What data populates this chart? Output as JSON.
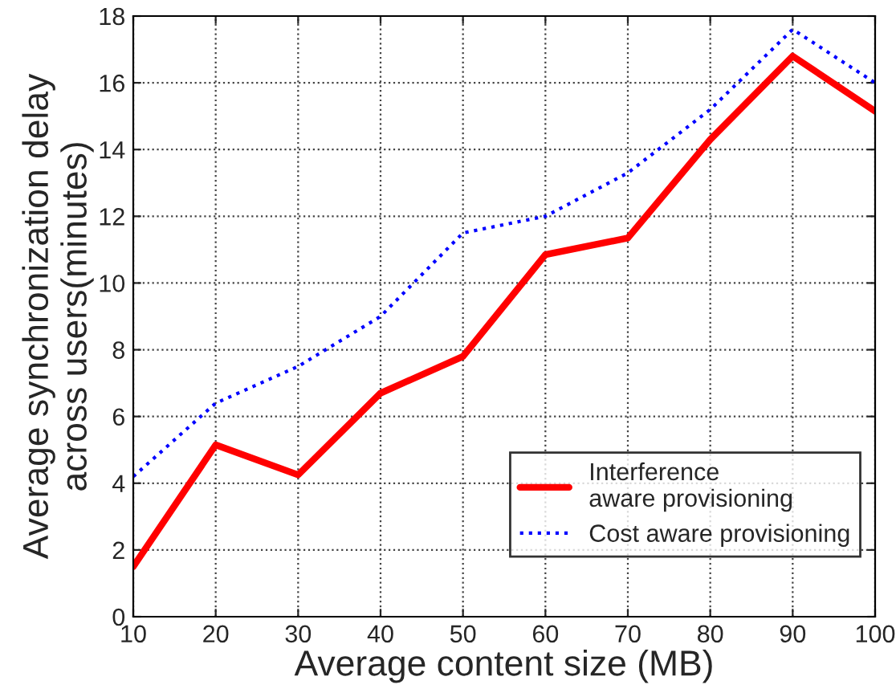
{
  "chart_data": {
    "type": "line",
    "xlabel": "Average content size (MB)",
    "ylabel": "Average synchronization delay\nacross users(minutes)",
    "x": [
      10,
      20,
      30,
      40,
      50,
      60,
      70,
      80,
      90,
      100
    ],
    "series": [
      {
        "name": "Interference\naware provisioning",
        "color": "#ff0000",
        "line_style": "solid",
        "values": [
          1.5,
          5.15,
          4.25,
          6.7,
          7.8,
          10.85,
          11.35,
          14.3,
          16.8,
          15.15
        ]
      },
      {
        "name": "Cost aware provisioning",
        "color": "#0000ff",
        "line_style": "dotted",
        "values": [
          4.2,
          6.4,
          7.5,
          9.0,
          11.5,
          12.0,
          13.3,
          15.2,
          17.6,
          16.0
        ]
      }
    ],
    "xlim": [
      10,
      100
    ],
    "ylim": [
      0,
      18
    ],
    "xticks": [
      10,
      20,
      30,
      40,
      50,
      60,
      70,
      80,
      90,
      100
    ],
    "yticks": [
      0,
      2,
      4,
      6,
      8,
      10,
      12,
      14,
      16,
      18
    ],
    "grid": true,
    "legend": "bottom right",
    "marker": "none"
  }
}
